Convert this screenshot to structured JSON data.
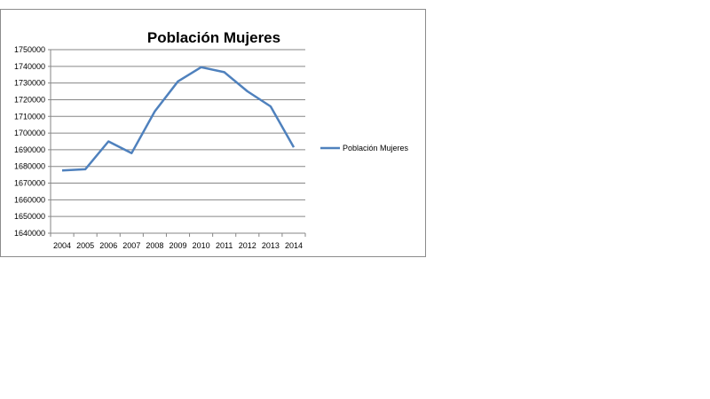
{
  "chart_data": {
    "type": "line",
    "title": "Población Mujeres",
    "xlabel": "",
    "ylabel": "",
    "categories": [
      "2004",
      "2005",
      "2006",
      "2007",
      "2008",
      "2009",
      "2010",
      "2011",
      "2012",
      "2013",
      "2014"
    ],
    "series": [
      {
        "name": "Población Mujeres",
        "color": "#4f81bd",
        "values": [
          1677600,
          1678300,
          1695000,
          1688000,
          1713000,
          1731000,
          1739500,
          1736500,
          1725000,
          1716000,
          1691500
        ]
      }
    ],
    "ylim": [
      1640000,
      1750000
    ],
    "yticks": [
      "1750000",
      "1740000",
      "1730000",
      "1720000",
      "1710000",
      "1700000",
      "1690000",
      "1680000",
      "1670000",
      "1660000",
      "1650000",
      "1640000"
    ],
    "grid": true,
    "legend_position": "right"
  }
}
